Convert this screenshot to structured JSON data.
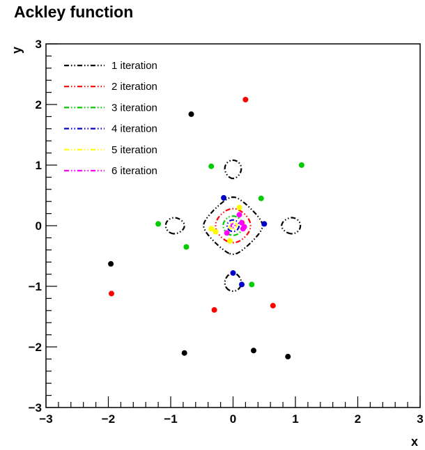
{
  "chart_data": {
    "type": "line",
    "title": "Ackley function",
    "xlabel": "x",
    "ylabel": "y",
    "xlim": [
      -3,
      3
    ],
    "ylim": [
      -3,
      3
    ],
    "x_ticks": [
      -3,
      -2,
      -1,
      0,
      1,
      2,
      3
    ],
    "y_ticks": [
      -3,
      -2,
      -1,
      0,
      1,
      2,
      3
    ],
    "x_tick_labels": [
      "−3",
      "−2",
      "−1",
      "0",
      "1",
      "2",
      "3"
    ],
    "y_tick_labels": [
      "−3",
      "−2",
      "−1",
      "0",
      "1",
      "2",
      "3"
    ],
    "grid": false,
    "legend_position": "top-left",
    "series": [
      {
        "name": "1 iteration",
        "color": "#000000",
        "level": 3,
        "points": [
          [
            -0.67,
            1.84
          ],
          [
            -1.96,
            -0.63
          ],
          [
            -0.78,
            -2.1
          ],
          [
            0.33,
            -2.06
          ],
          [
            0.88,
            -2.16
          ]
        ]
      },
      {
        "name": "2 iteration",
        "color": "#ff0000",
        "level": 2,
        "points": [
          [
            0.2,
            2.08
          ],
          [
            -1.95,
            -1.12
          ],
          [
            -0.3,
            -1.39
          ],
          [
            0.64,
            -1.32
          ]
        ]
      },
      {
        "name": "3 iteration",
        "color": "#00cc00",
        "level": 1,
        "points": [
          [
            -0.35,
            0.98
          ],
          [
            1.1,
            1.0
          ],
          [
            0.45,
            0.45
          ],
          [
            -1.2,
            0.03
          ],
          [
            -0.75,
            -0.35
          ],
          [
            0.3,
            -0.97
          ]
        ]
      },
      {
        "name": "4 iteration",
        "color": "#0000cc",
        "level": 0.5,
        "points": [
          [
            -0.15,
            0.46
          ],
          [
            0.5,
            0.03
          ],
          [
            0.0,
            -0.78
          ],
          [
            0.14,
            -0.97
          ]
        ]
      },
      {
        "name": "5 iteration",
        "color": "#ffff00",
        "level": 0.27,
        "points": [
          [
            -0.35,
            -0.05
          ],
          [
            -0.28,
            -0.1
          ],
          [
            0.1,
            0.3
          ],
          [
            -0.05,
            -0.25
          ],
          [
            0.15,
            0.05
          ]
        ]
      },
      {
        "name": "6 iteration",
        "color": "#ff00ff",
        "level": 0.12,
        "points": [
          [
            0.1,
            0.18
          ],
          [
            0.14,
            0.05
          ],
          [
            0.16,
            -0.05
          ],
          [
            -0.1,
            -0.12
          ],
          [
            0.18,
            -0.02
          ]
        ]
      }
    ]
  }
}
